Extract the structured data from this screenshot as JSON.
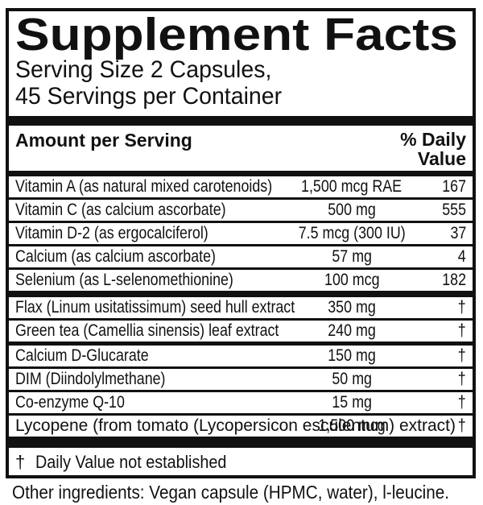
{
  "title": "Supplement Facts",
  "serving": {
    "line1": "Serving Size 2 Capsules,",
    "line2": "45 Servings per Container"
  },
  "table": {
    "amount_header": "Amount per Serving",
    "dv_header_line1": "% Daily",
    "dv_header_line2": "Value",
    "rows": [
      {
        "name": "Vitamin A (as natural mixed carotenoids)",
        "amount": "1,500 mcg RAE",
        "dv": "167"
      },
      {
        "name": "Vitamin C (as calcium ascorbate)",
        "amount": "500 mg",
        "dv": "555"
      },
      {
        "name": "Vitamin D-2 (as ergocalciferol)",
        "amount": "7.5 mcg (300 IU)",
        "dv": "37"
      },
      {
        "name": "Calcium (as calcium ascorbate)",
        "amount": "57 mg",
        "dv": "4"
      },
      {
        "name": "Selenium (as L-selenomethionine)",
        "amount": "100 mcg",
        "dv": "182"
      },
      {
        "name": "Flax (Linum usitatissimum) seed hull extract",
        "amount": "350 mg",
        "dv": "†"
      },
      {
        "name": "Green tea (Camellia sinensis) leaf extract",
        "amount": "240 mg",
        "dv": "†"
      },
      {
        "name": "Calcium D-Glucarate",
        "amount": "150 mg",
        "dv": "†"
      },
      {
        "name": "DIM (Diindolylmethane)",
        "amount": "50 mg",
        "dv": "†"
      },
      {
        "name": "Co-enzyme Q-10",
        "amount": "15 mg",
        "dv": "†"
      },
      {
        "name": "Lycopene (from tomato (Lycopersicon esculentum) extract)",
        "amount": "1,500 mcg",
        "dv": "†"
      }
    ]
  },
  "footnote": {
    "dagger": "†",
    "text": "Daily Value not established"
  },
  "other_ingredients": "Other ingredients: Vegan capsule (HPMC, water), l-leucine.",
  "colors": {
    "text": "#111111",
    "background": "#ffffff",
    "rule": "#111111"
  }
}
